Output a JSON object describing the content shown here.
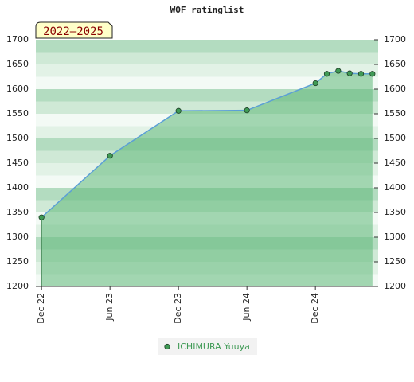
{
  "chart_data": {
    "type": "line",
    "title": "WOF ratinglist",
    "badge": "2022–2025",
    "x": [
      0,
      6,
      12,
      18,
      24,
      25,
      26,
      27,
      28,
      29
    ],
    "xlim": [
      -0.5,
      29.5
    ],
    "xticks": [
      {
        "value": 0,
        "label": "Dec 22"
      },
      {
        "value": 6,
        "label": "Jun 23"
      },
      {
        "value": 12,
        "label": "Dec 23"
      },
      {
        "value": 18,
        "label": "Jun 24"
      },
      {
        "value": 24,
        "label": "Dec 24"
      }
    ],
    "ylim": [
      1200,
      1700
    ],
    "yticks": [
      1200,
      1250,
      1300,
      1350,
      1400,
      1450,
      1500,
      1550,
      1600,
      1650,
      1700
    ],
    "series": [
      {
        "name": "ICHIMURA Yuuya",
        "color": "#3f9a55",
        "line_color": "#5b9fd6",
        "area_color": "#5fb878",
        "values": [
          1340,
          1465,
          1556,
          1557,
          1612,
          1631,
          1637,
          1632,
          1631,
          1631
        ]
      }
    ]
  }
}
